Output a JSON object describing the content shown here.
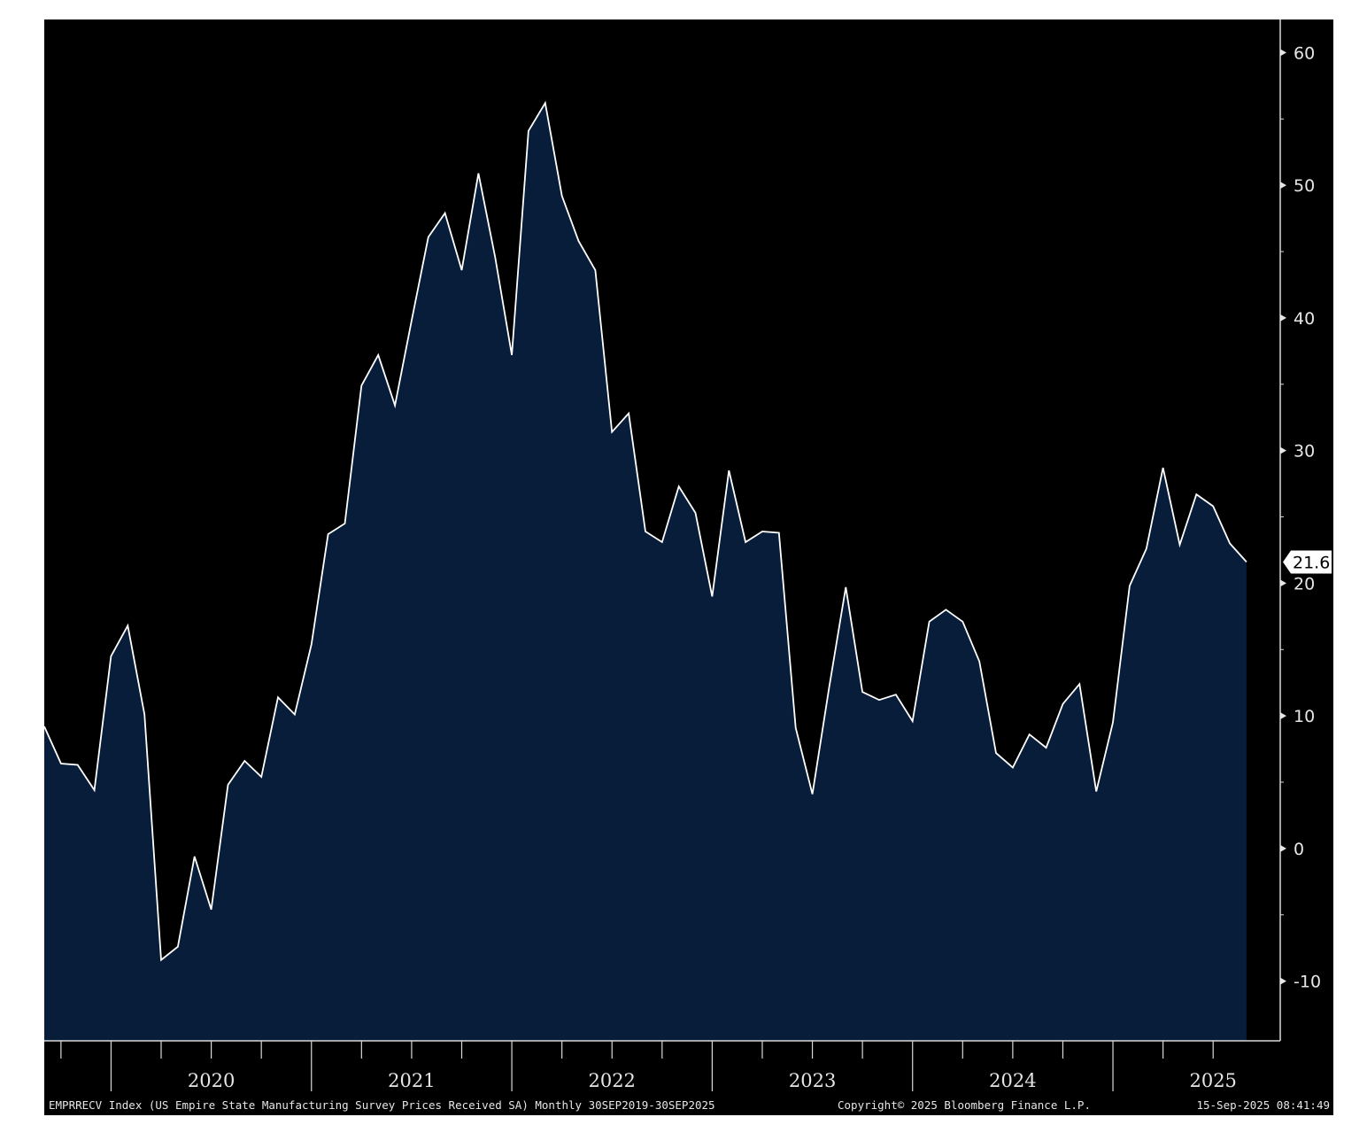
{
  "chart_data": {
    "type": "area",
    "x_start": "2019-09",
    "frequency": "monthly",
    "values": [
      9.2,
      6.4,
      6.3,
      4.4,
      14.5,
      16.8,
      10.1,
      -8.4,
      -7.4,
      -0.6,
      -4.6,
      4.8,
      6.6,
      5.4,
      11.4,
      10.1,
      15.4,
      23.7,
      24.5,
      34.9,
      37.2,
      33.4,
      39.8,
      46.1,
      47.9,
      43.6,
      50.9,
      44.6,
      37.2,
      54.1,
      56.2,
      49.2,
      45.8,
      43.6,
      31.4,
      32.8,
      23.9,
      23.1,
      27.3,
      25.3,
      19.0,
      28.5,
      23.1,
      23.9,
      23.8,
      9.1,
      4.1,
      12.1,
      19.7,
      11.8,
      11.2,
      11.6,
      9.6,
      17.1,
      18.0,
      17.1,
      14.1,
      7.2,
      6.1,
      8.6,
      7.6,
      10.9,
      12.4,
      4.3,
      9.5,
      19.8,
      22.6,
      28.7,
      22.9,
      26.7,
      25.8,
      23.0,
      21.6
    ],
    "ylim": [
      -14.5,
      62.5
    ],
    "y_ticks": [
      60,
      50,
      40,
      30,
      20,
      10,
      0,
      -10
    ],
    "y_tick_labels": [
      "60",
      "50",
      "40",
      "30",
      "20",
      "10",
      "0",
      "-10"
    ],
    "x_tick_labels": [
      "2020",
      "2021",
      "2022",
      "2023",
      "2024",
      "2025"
    ],
    "last_value_label": "21.6",
    "grid": false,
    "line_color": "#ffffff",
    "fill_color": "#071d3a",
    "background_color": "#000000"
  },
  "footer": {
    "description": "EMPRRECV Index (US Empire State Manufacturing Survey Prices Received SA)  Monthly 30SEP2019-30SEP2025",
    "copyright": "Copyright© 2025 Bloomberg Finance L.P.",
    "timestamp": "15-Sep-2025 08:41:49"
  }
}
